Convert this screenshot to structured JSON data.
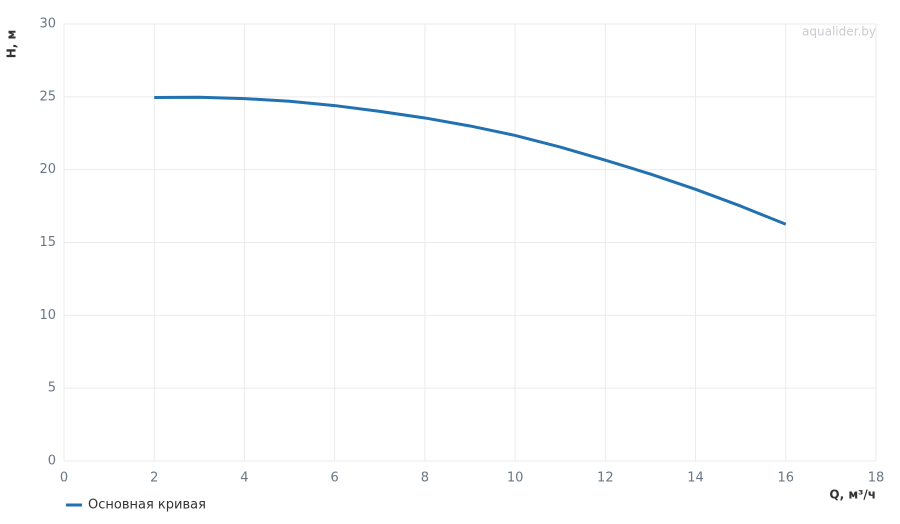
{
  "chart_data": {
    "type": "line",
    "watermark": "aqualider.by",
    "x_label": "Q, м³/ч",
    "y_label": "H, м",
    "x": [
      2,
      3,
      4,
      5,
      6,
      7,
      8,
      9,
      10,
      11,
      12,
      13,
      14,
      15,
      16
    ],
    "series": [
      {
        "name": "Основная кривая",
        "color": "#2271b1",
        "values": [
          24.95,
          24.97,
          24.88,
          24.7,
          24.4,
          24.0,
          23.55,
          23.0,
          22.35,
          21.55,
          20.65,
          19.7,
          18.65,
          17.5,
          16.25
        ]
      }
    ],
    "xlim": [
      0,
      18
    ],
    "xticks": [
      0,
      2,
      4,
      6,
      8,
      10,
      12,
      14,
      16,
      18
    ],
    "ylim": [
      0,
      30
    ],
    "yticks": [
      0,
      5,
      10,
      15,
      20,
      25,
      30
    ],
    "grid": true,
    "legend": "bottom-left"
  }
}
